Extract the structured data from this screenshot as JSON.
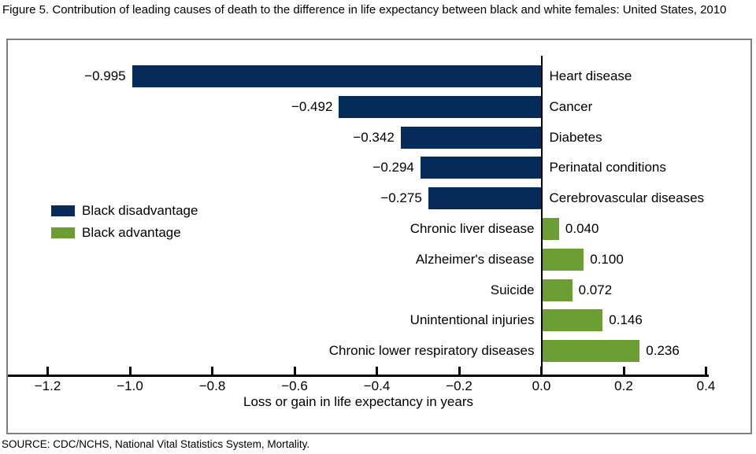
{
  "title": "Figure 5. Contribution of leading causes of death to the difference in life expectancy between black and white females: United States, 2010",
  "source": "SOURCE: CDC/NCHS, National Vital Statistics System, Mortality.",
  "colors": {
    "disadvantage": "#062b5b",
    "advantage": "#6b9e33",
    "panel_border": "#7f7f7f",
    "axis": "#000000"
  },
  "legend": [
    {
      "label": "Black disadvantage",
      "color_key": "disadvantage"
    },
    {
      "label": "Black advantage",
      "color_key": "advantage"
    }
  ],
  "chart_data": {
    "type": "bar",
    "orientation": "horizontal",
    "title": "Contribution of leading causes of death to the difference in life expectancy between black and white females: United States, 2010",
    "categories": [
      "Heart disease",
      "Cancer",
      "Diabetes",
      "Perinatal conditions",
      "Cerebrovascular diseases",
      "Chronic liver disease",
      "Alzheimer's disease",
      "Suicide",
      "Unintentional injuries",
      "Chronic lower respiratory diseases"
    ],
    "values": [
      -0.995,
      -0.492,
      -0.342,
      -0.294,
      -0.275,
      0.04,
      0.1,
      0.072,
      0.146,
      0.236
    ],
    "value_labels": [
      "−0.995",
      "−0.492",
      "−0.342",
      "−0.294",
      "−0.275",
      "0.040",
      "0.100",
      "0.072",
      "0.146",
      "0.236"
    ],
    "series_colors": {
      "negative": "#062b5b",
      "positive": "#6b9e33"
    },
    "xlabel": "Loss or gain in life expectancy in years",
    "ylabel": "",
    "xlim": [
      -1.2,
      0.4
    ],
    "xticks": [
      -1.2,
      -1.0,
      -0.8,
      -0.6,
      -0.4,
      -0.2,
      0.0,
      0.2,
      0.4
    ],
    "xtick_labels": [
      "−1.2",
      "−1.0",
      "−0.8",
      "−0.6",
      "−0.4",
      "−0.2",
      "0.0",
      "0.2",
      "0.4"
    ],
    "grid": false,
    "legend_position": "middle-left"
  }
}
